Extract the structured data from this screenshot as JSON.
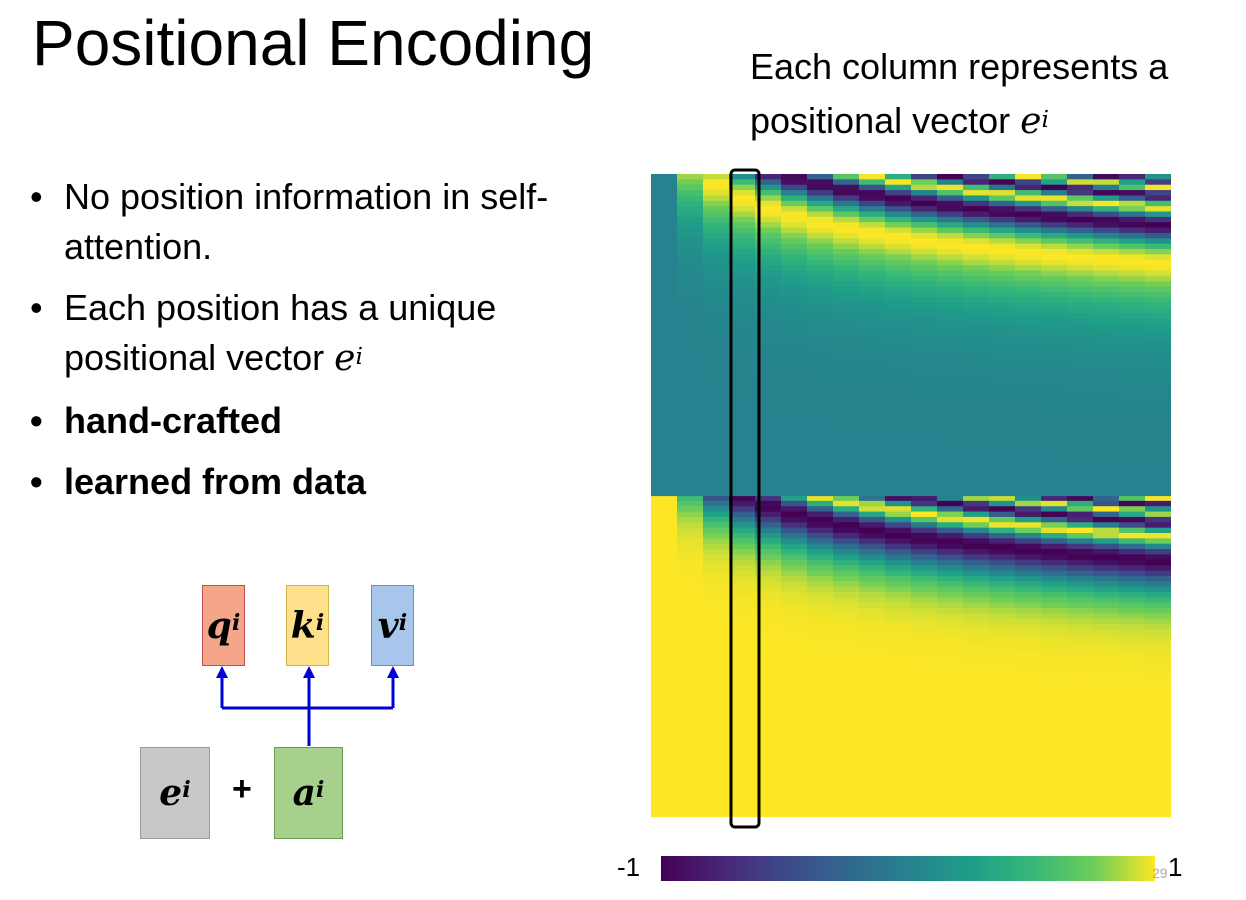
{
  "slide": {
    "title": "Positional Encoding",
    "side_caption": {
      "line1": "Each column represents a",
      "line2_text": "positional vector",
      "symbol_base": "e",
      "symbol_sup": "i"
    },
    "bullets": [
      {
        "text": "No position information in self-attention."
      },
      {
        "text": "Each position has a unique positional vector",
        "symbol_base": "e",
        "symbol_sup": "i"
      },
      {
        "text": "hand-crafted"
      },
      {
        "text": "learned from data"
      }
    ],
    "diagram": {
      "q": {
        "base": "q",
        "sup": "i",
        "color": "#f4a58a"
      },
      "k": {
        "base": "k",
        "sup": "i",
        "color": "#ffe08a"
      },
      "v": {
        "base": "v",
        "sup": "i",
        "color": "#a8c6ec"
      },
      "e": {
        "base": "e",
        "sup": "i",
        "color": "#c8c8c8"
      },
      "a": {
        "base": "a",
        "sup": "i",
        "color": "#a8d08d"
      },
      "plus": "+",
      "arrow_color": "#0000dd"
    },
    "heatmap": {
      "colormap": "viridis",
      "highlighted_column": 3,
      "value_range": [
        -1,
        1
      ]
    },
    "colorbar": {
      "min_label": "-1",
      "max_label": "1"
    },
    "page_number": "29"
  }
}
